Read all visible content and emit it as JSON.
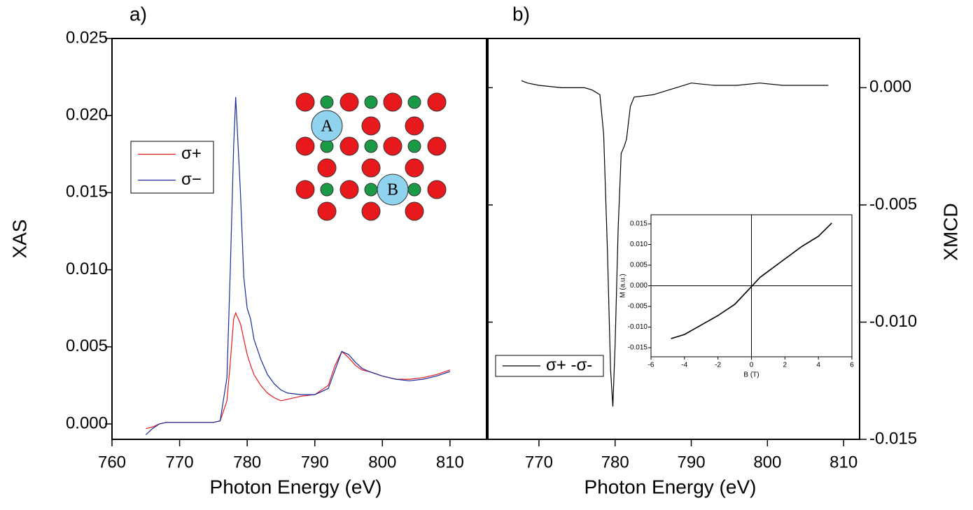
{
  "chart_data": [
    {
      "type": "line",
      "title": "a)",
      "xlabel": "Photon Energy (eV)",
      "ylabel": "XAS",
      "xlim": [
        760,
        815.4
      ],
      "ylim": [
        -0.001,
        0.025
      ],
      "xticks": [
        760,
        770,
        780,
        790,
        800,
        810
      ],
      "yticks": [
        {
          "value": 0,
          "label": "0.000"
        },
        {
          "value": 0.005,
          "label": "0.005"
        },
        {
          "value": 0.01,
          "label": "0.010"
        },
        {
          "value": 0.015,
          "label": "0.015"
        },
        {
          "value": 0.02,
          "label": "0.020"
        },
        {
          "value": 0.025,
          "label": "0.025"
        }
      ],
      "legend": "left",
      "annotations": [
        "A",
        "B"
      ],
      "x": [
        765,
        766,
        767,
        768,
        770,
        772,
        774,
        775,
        776,
        777,
        777.5,
        778,
        778.3,
        779,
        779.5,
        780,
        780.5,
        781,
        782,
        783,
        784,
        785,
        786,
        788,
        790,
        792,
        793,
        794,
        795,
        796,
        797,
        798,
        800,
        802,
        804,
        806,
        808,
        810
      ],
      "series": [
        {
          "name": "σ+",
          "color": "#e8191c",
          "values": [
            -0.0003,
            -0.0002,
            0.0,
            0.0001,
            0.0001,
            0.0001,
            0.0001,
            0.0001,
            0.0002,
            0.0015,
            0.004,
            0.0068,
            0.0072,
            0.0065,
            0.0055,
            0.0045,
            0.0038,
            0.0032,
            0.0025,
            0.002,
            0.0017,
            0.0015,
            0.0016,
            0.0018,
            0.0019,
            0.0025,
            0.0038,
            0.0047,
            0.0043,
            0.0038,
            0.0035,
            0.0034,
            0.0031,
            0.0029,
            0.0029,
            0.003,
            0.0032,
            0.0035
          ]
        },
        {
          "name": "σ−",
          "color": "#1c2a9c",
          "values": [
            -0.0007,
            -0.0003,
            0.0,
            0.0001,
            0.0001,
            0.0001,
            0.0001,
            0.0001,
            0.0002,
            0.003,
            0.01,
            0.018,
            0.0212,
            0.015,
            0.0095,
            0.0075,
            0.0068,
            0.0055,
            0.0042,
            0.0032,
            0.0026,
            0.0022,
            0.002,
            0.0019,
            0.0019,
            0.0023,
            0.0035,
            0.0047,
            0.0045,
            0.004,
            0.0036,
            0.0034,
            0.0031,
            0.0029,
            0.0028,
            0.0029,
            0.0031,
            0.0034
          ]
        }
      ]
    },
    {
      "type": "line",
      "title": "b)",
      "xlabel": "Photon Energy (eV)",
      "y2label": "XMCD",
      "xlim": [
        763.3,
        812.1
      ],
      "y2lim": [
        -0.015,
        0.0021
      ],
      "xticks": [
        770,
        780,
        790,
        800,
        810
      ],
      "y2ticks": [
        {
          "value": 0,
          "label": "0.000"
        },
        {
          "value": -0.005,
          "label": "-0.005"
        },
        {
          "value": -0.01,
          "label": "-0.010"
        },
        {
          "value": -0.015,
          "label": "-0.015"
        }
      ],
      "legend": "lower left",
      "x": [
        767.7,
        768.5,
        770,
        773,
        776,
        777,
        778,
        778.5,
        779,
        779.4,
        779.7,
        780,
        780.4,
        780.8,
        781.2,
        781.5,
        782,
        782.5,
        785,
        788,
        790,
        793,
        796,
        799,
        802,
        805,
        808
      ],
      "series": [
        {
          "name": "σ+ -σ-",
          "color": "#000000",
          "axis": "y2",
          "values": [
            0.0003,
            0.0002,
            0.0001,
            0.0,
            0.0,
            -0.0001,
            -0.0003,
            -0.002,
            -0.007,
            -0.012,
            -0.0136,
            -0.011,
            -0.006,
            -0.0028,
            -0.0025,
            -0.0022,
            -0.0008,
            -0.0004,
            -0.0003,
            0.0,
            0.0002,
            0.0001,
            0.0001,
            0.0002,
            0.0001,
            0.0001,
            0.0001
          ]
        }
      ]
    },
    {
      "type": "line",
      "xlabel": "B (T)",
      "ylabel": "M (a.u.)",
      "xlim": [
        -6,
        6
      ],
      "ylim": [
        -0.0172,
        0.0172
      ],
      "zero_lines": true,
      "xticks": [
        -6,
        -4,
        -2,
        0,
        2,
        4,
        6
      ],
      "yticks": [
        {
          "value": 0.015,
          "label": "0.015"
        },
        {
          "value": 0.01,
          "label": "0.010"
        },
        {
          "value": 0.005,
          "label": "0.005"
        },
        {
          "value": 0,
          "label": "0.000"
        },
        {
          "value": -0.005,
          "label": "-0.005"
        },
        {
          "value": -0.01,
          "label": "-0.010"
        },
        {
          "value": -0.015,
          "label": "-0.015"
        }
      ],
      "x": [
        -4.8,
        -4,
        -3,
        -2,
        -1,
        0,
        0.5,
        1,
        2,
        3,
        4,
        4.8
      ],
      "series": [
        {
          "color": "#000000",
          "values": [
            -0.0128,
            -0.0118,
            -0.0095,
            -0.0072,
            -0.0045,
            -0.0002,
            0.002,
            0.0035,
            0.0065,
            0.0095,
            0.012,
            0.0152
          ]
        }
      ]
    }
  ]
}
